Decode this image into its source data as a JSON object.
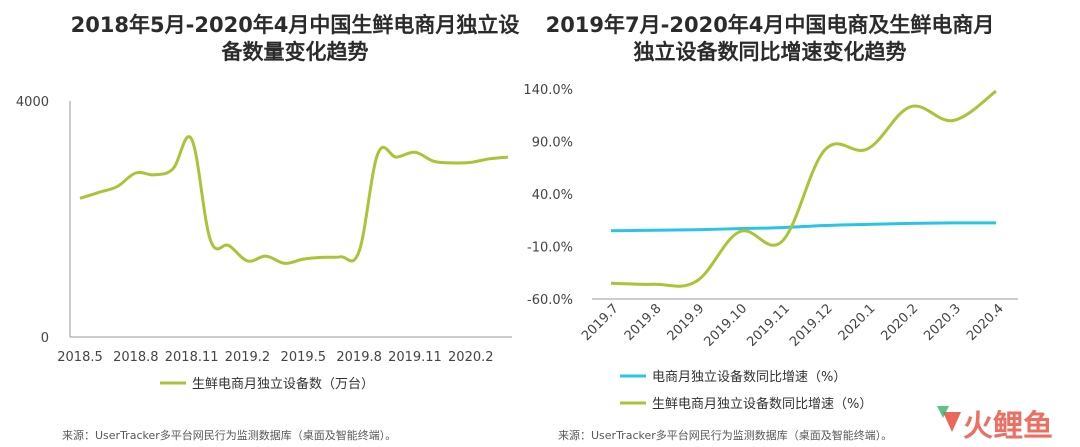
{
  "colors": {
    "green": "#a8c437",
    "blue": "#29c4e8",
    "axis": "#999999",
    "watermark": "#e74c3c"
  },
  "left": {
    "title_line1": "2018年5月-2020年4月中国生鲜电商月独立设",
    "title_line2": "备数量变化趋势",
    "source": "来源：UserTracker多平台网民行为监测数据库（桌面及智能终端）。"
  },
  "right": {
    "title_line1": "2019年7月-2020年4月中国电商及生鲜电商月",
    "title_line2": "独立设备数同比增速变化趋势",
    "source": "来源：UserTracker多平台网民行为监测数据库（桌面及智能终端）。"
  },
  "watermark": "火鲤鱼",
  "chart_data": [
    {
      "type": "line",
      "title": "2018年5月-2020年4月中国生鲜电商月独立设备数量变化趋势",
      "x": [
        "2018.5",
        "2018.6",
        "2018.7",
        "2018.8",
        "2018.9",
        "2018.10",
        "2018.11",
        "2018.12",
        "2019.1",
        "2019.2",
        "2019.3",
        "2019.4",
        "2019.5",
        "2019.6",
        "2019.7",
        "2019.8",
        "2019.9",
        "2019.10",
        "2019.11",
        "2019.12",
        "2020.1",
        "2020.2",
        "2020.3",
        "2020.4"
      ],
      "x_tick_labels": [
        "2018.5",
        "2018.8",
        "2018.11",
        "2019.2",
        "2019.5",
        "2019.8",
        "2019.11",
        "2020.2"
      ],
      "y_tick_labels": [
        "0",
        "4000"
      ],
      "ylim": [
        0,
        4000
      ],
      "legend_position": "bottom",
      "series": [
        {
          "name": "生鲜电商月独立设备数（万台）",
          "color": "#a8c437",
          "values": [
            2350,
            2450,
            2550,
            2780,
            2750,
            2850,
            3350,
            1650,
            1550,
            1290,
            1370,
            1250,
            1320,
            1350,
            1360,
            1450,
            3100,
            3050,
            3130,
            2980,
            2950,
            2960,
            3020,
            3050
          ]
        }
      ]
    },
    {
      "type": "line",
      "title": "2019年7月-2020年4月中国电商及生鲜电商月独立设备数同比增速变化趋势",
      "categories": [
        "2019.7",
        "2019.8",
        "2019.9",
        "2019.10",
        "2019.11",
        "2019.12",
        "2020.1",
        "2020.2",
        "2020.3",
        "2020.4"
      ],
      "y_tick_labels": [
        "-60.0%",
        "-10.0%",
        "40.0%",
        "90.0%",
        "140.0%"
      ],
      "ylim": [
        -60,
        140
      ],
      "legend_position": "bottom",
      "series": [
        {
          "name": "电商月独立设备数同比增速（%）",
          "color": "#29c4e8",
          "values": [
            5.0,
            5.5,
            6.0,
            7.0,
            8.0,
            10.0,
            11.0,
            12.0,
            12.5,
            12.5
          ]
        },
        {
          "name": "生鲜电商月独立设备数同比增速（%）",
          "color": "#a8c437",
          "values": [
            -45.0,
            -46.0,
            -43.0,
            4.0,
            -5.0,
            82.0,
            83.0,
            123.0,
            110.0,
            138.0
          ]
        }
      ]
    }
  ]
}
